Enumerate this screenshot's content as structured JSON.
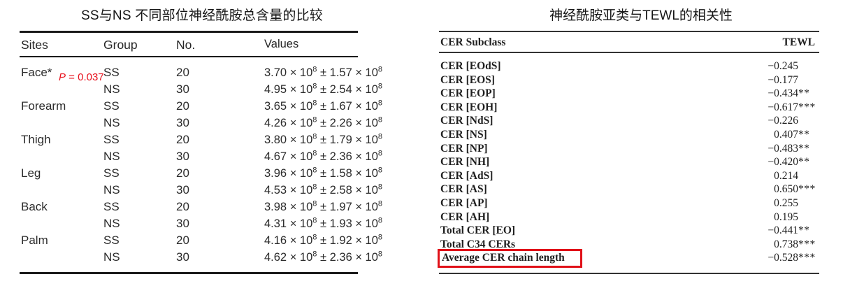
{
  "page": {
    "background": "#ffffff",
    "text_color": "#262626"
  },
  "left_table": {
    "title": "SS与NS 不同部位神经酰胺总含量的比较",
    "headers": [
      "Sites",
      "Group",
      "No.",
      "Values"
    ],
    "p_note": {
      "label": "P",
      "rest": " = 0.037",
      "color": "#e8111d"
    },
    "symbols": {
      "times": "×",
      "base": "10",
      "exp": "8",
      "pm": "±"
    },
    "rows": [
      {
        "site": "Face*",
        "group": "SS",
        "n": "20",
        "mean": "3.70",
        "sd": "1.57"
      },
      {
        "site": "",
        "group": "NS",
        "n": "30",
        "mean": "4.95",
        "sd": "2.54"
      },
      {
        "site": "Forearm",
        "group": "SS",
        "n": "20",
        "mean": "3.65",
        "sd": "1.67"
      },
      {
        "site": "",
        "group": "NS",
        "n": "30",
        "mean": "4.26",
        "sd": "2.26"
      },
      {
        "site": "Thigh",
        "group": "SS",
        "n": "20",
        "mean": "3.80",
        "sd": "1.79"
      },
      {
        "site": "",
        "group": "NS",
        "n": "30",
        "mean": "4.67",
        "sd": "2.36"
      },
      {
        "site": "Leg",
        "group": "SS",
        "n": "20",
        "mean": "3.96",
        "sd": "1.58"
      },
      {
        "site": "",
        "group": "NS",
        "n": "30",
        "mean": "4.53",
        "sd": "2.58"
      },
      {
        "site": "Back",
        "group": "SS",
        "n": "20",
        "mean": "3.98",
        "sd": "1.97"
      },
      {
        "site": "",
        "group": "NS",
        "n": "30",
        "mean": "4.31",
        "sd": "1.93"
      },
      {
        "site": "Palm",
        "group": "SS",
        "n": "20",
        "mean": "4.16",
        "sd": "1.92"
      },
      {
        "site": "",
        "group": "NS",
        "n": "30",
        "mean": "4.62",
        "sd": "2.36"
      }
    ]
  },
  "right_table": {
    "title": "神经酰胺亚类与TEWL的相关性",
    "headers": {
      "subclass": "CER Subclass",
      "tewl": "TEWL"
    },
    "highlight_color": "#e01119",
    "rows": [
      {
        "label": "CER [EOdS]",
        "value": "−0.245",
        "stars": ""
      },
      {
        "label": "CER [EOS]",
        "value": "−0.177",
        "stars": ""
      },
      {
        "label": "CER [EOP]",
        "value": "−0.434",
        "stars": "**"
      },
      {
        "label": "CER [EOH]",
        "value": "−0.617",
        "stars": "***"
      },
      {
        "label": "CER [NdS]",
        "value": "−0.226",
        "stars": ""
      },
      {
        "label": "CER [NS]",
        "value": "0.407",
        "stars": "**"
      },
      {
        "label": "CER [NP]",
        "value": "−0.483",
        "stars": "**"
      },
      {
        "label": "CER [NH]",
        "value": "−0.420",
        "stars": "**"
      },
      {
        "label": "CER [AdS]",
        "value": "0.214",
        "stars": ""
      },
      {
        "label": "CER [AS]",
        "value": "0.650",
        "stars": "***"
      },
      {
        "label": "CER [AP]",
        "value": "0.255",
        "stars": ""
      },
      {
        "label": "CER [AH]",
        "value": "0.195",
        "stars": ""
      },
      {
        "label": "Total CER [EO]",
        "value": "−0.441",
        "stars": "**"
      },
      {
        "label": "Total C34 CERs",
        "value": "0.738",
        "stars": "***"
      },
      {
        "label": "Average CER chain length",
        "value": "−0.528",
        "stars": "***",
        "highlighted": true
      }
    ]
  }
}
